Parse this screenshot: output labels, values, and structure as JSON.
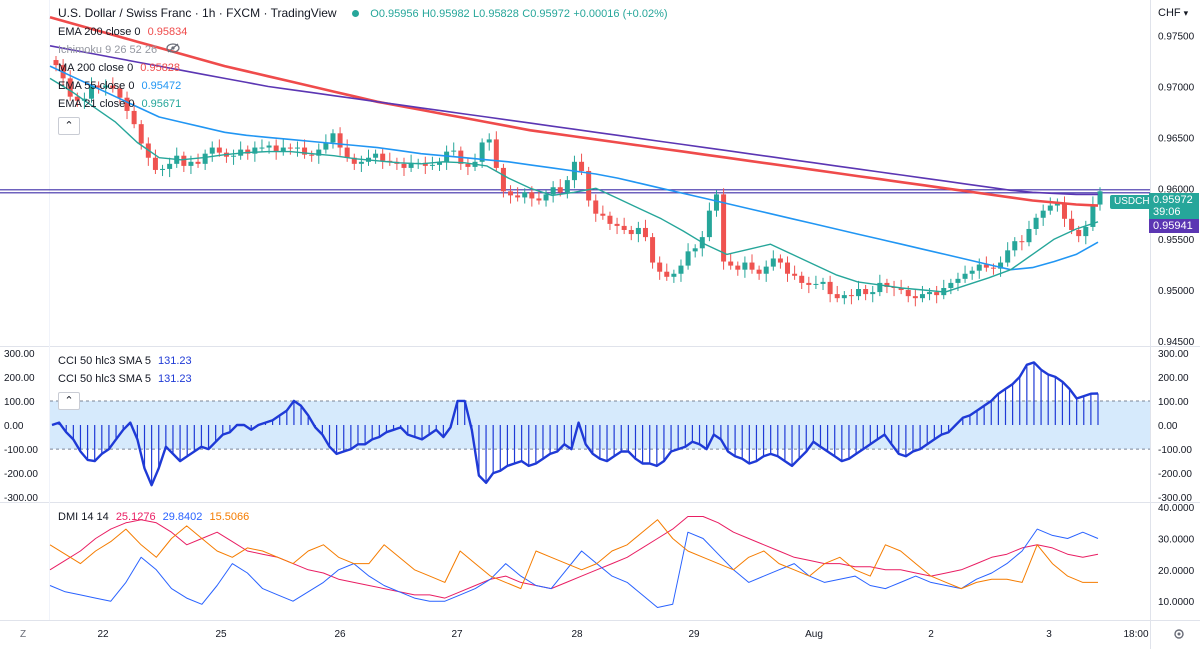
{
  "header": {
    "symbol": "U.S. Dollar / Swiss Franc",
    "interval": "1h",
    "broker": "FXCM",
    "platform": "TradingView",
    "ohlc": {
      "o": "O0.95956",
      "h": "H0.95982",
      "l": "L0.95828",
      "c": "C0.95972",
      "change": "+0.00016 (+0.02%)"
    }
  },
  "indicators": [
    {
      "label": "EMA 200 close 0",
      "value": "0.95834",
      "color": "#ef4b4b"
    },
    {
      "label": "Ichimoku 9 26 52 26",
      "value": "",
      "color": "#9598a1"
    },
    {
      "label": "MA 200 close 0",
      "value": "0.95828",
      "color": "#ef4b4b"
    },
    {
      "label": "EMA 55 close 0",
      "value": "0.95472",
      "color": "#2196f3"
    },
    {
      "label": "EMA 21 close 0",
      "value": "0.95671",
      "color": "#26a69a"
    }
  ],
  "price_axis": {
    "currency": "CHF",
    "ticks": [
      "0.97500",
      "0.97000",
      "0.96500",
      "0.96000",
      "0.95500",
      "0.95000",
      "0.94500"
    ],
    "last_label": "USDCHF",
    "last_price": "0.95972",
    "countdown": "39:06",
    "ma_label": "0.95941"
  },
  "cci": {
    "labels": [
      "CCI 50 hlc3 SMA 5",
      "CCI 50 hlc3 SMA 5"
    ],
    "value": "131.23",
    "ticks": [
      "300.00",
      "200.00",
      "100.00",
      "0.00",
      "-100.00",
      "-200.00",
      "-300.00"
    ]
  },
  "dmi": {
    "label": "DMI 14 14",
    "values": [
      {
        "value": "25.1276",
        "color": "#e91e63"
      },
      {
        "value": "29.8402",
        "color": "#2962ff"
      },
      {
        "value": "15.5066",
        "color": "#f57c00"
      }
    ],
    "ticks": [
      "40.0000",
      "30.0000",
      "20.0000",
      "10.0000"
    ]
  },
  "time_axis": {
    "labels": [
      "22",
      "25",
      "26",
      "27",
      "28",
      "29",
      "Aug",
      "2",
      "3",
      "18:00"
    ],
    "zoom_icon": "Z"
  },
  "colors": {
    "up": "#26a69a",
    "down": "#ef5350",
    "ema200": "#ef4b4b",
    "ma200": "#5b36b3",
    "ema55": "#2196f3",
    "ema21": "#26a69a",
    "cci": "#1f3ad6"
  },
  "chart_data": [
    {
      "type": "candlestick",
      "title": "U.S. Dollar / Swiss Franc · 1h · FXCM",
      "ylim": [
        0.9445,
        0.9785
      ],
      "x_labels": [
        "22",
        "25",
        "26",
        "27",
        "28",
        "29",
        "Aug",
        "2",
        "3",
        "18:00"
      ],
      "close": [
        0.9721,
        0.9708,
        0.969,
        0.9686,
        0.9688,
        0.9701,
        0.9699,
        0.9701,
        0.9698,
        0.9689,
        0.9676,
        0.9663,
        0.9644,
        0.963,
        0.9618,
        0.9619,
        0.9624,
        0.9632,
        0.9622,
        0.9626,
        0.9624,
        0.9634,
        0.964,
        0.9635,
        0.9631,
        0.9632,
        0.9638,
        0.9634,
        0.964,
        0.964,
        0.9642,
        0.9636,
        0.964,
        0.9639,
        0.964,
        0.9633,
        0.9632,
        0.9638,
        0.9645,
        0.9654,
        0.964,
        0.963,
        0.9624,
        0.9626,
        0.963,
        0.9634,
        0.9627,
        0.9626,
        0.9624,
        0.962,
        0.9625,
        0.9625,
        0.9622,
        0.9623,
        0.9626,
        0.9636,
        0.9637,
        0.9624,
        0.9621,
        0.9626,
        0.9645,
        0.9648,
        0.962,
        0.9597,
        0.9593,
        0.9591,
        0.9596,
        0.959,
        0.9588,
        0.9594,
        0.9601,
        0.9596,
        0.9608,
        0.9626,
        0.9617,
        0.9588,
        0.9575,
        0.9573,
        0.9565,
        0.9563,
        0.9559,
        0.9555,
        0.9561,
        0.9552,
        0.9527,
        0.9518,
        0.9513,
        0.9516,
        0.9524,
        0.9538,
        0.9541,
        0.9552,
        0.9578,
        0.9594,
        0.9528,
        0.9524,
        0.952,
        0.9527,
        0.952,
        0.9516,
        0.9523,
        0.9531,
        0.9527,
        0.9516,
        0.9514,
        0.9507,
        0.9505,
        0.9506,
        0.9508,
        0.9496,
        0.9492,
        0.9495,
        0.9494,
        0.9501,
        0.9496,
        0.9498,
        0.9507,
        0.9503,
        0.9502,
        0.95,
        0.9494,
        0.9492,
        0.9496,
        0.9498,
        0.9495,
        0.9502,
        0.9507,
        0.9511,
        0.9516,
        0.9519,
        0.9525,
        0.9522,
        0.9521,
        0.9527,
        0.9539,
        0.9548,
        0.9547,
        0.956,
        0.9571,
        0.9578,
        0.9583,
        0.9586,
        0.957,
        0.9559,
        0.9553,
        0.9562,
        0.9584,
        0.9597
      ],
      "series": [
        {
          "name": "EMA 200",
          "values": [
            0.9768,
            0.9762,
            0.9756,
            0.975,
            0.9744,
            0.9738,
            0.9732,
            0.9726,
            0.972,
            0.9715,
            0.971,
            0.9705,
            0.97,
            0.9695,
            0.969,
            0.9685,
            0.9681,
            0.9677,
            0.9673,
            0.9669,
            0.9665,
            0.9661,
            0.9657,
            0.9654,
            0.9651,
            0.9648,
            0.9645,
            0.9642,
            0.9639,
            0.9636,
            0.9633,
            0.963,
            0.9627,
            0.9624,
            0.9621,
            0.9618,
            0.9615,
            0.9612,
            0.9609,
            0.9606,
            0.9603,
            0.96,
            0.9597,
            0.9594,
            0.9591,
            0.9588,
            0.9586,
            0.9584,
            0.9583
          ]
        },
        {
          "name": "MA 200",
          "values": [
            0.974,
            0.9736,
            0.9732,
            0.9728,
            0.9724,
            0.972,
            0.9716,
            0.9712,
            0.9708,
            0.9704,
            0.97,
            0.9697,
            0.9694,
            0.9691,
            0.9688,
            0.9685,
            0.9682,
            0.9679,
            0.9676,
            0.9673,
            0.967,
            0.9667,
            0.9664,
            0.9661,
            0.9658,
            0.9655,
            0.9652,
            0.9649,
            0.9646,
            0.9643,
            0.964,
            0.9637,
            0.9634,
            0.9631,
            0.9628,
            0.9625,
            0.9622,
            0.9619,
            0.9616,
            0.9613,
            0.961,
            0.9607,
            0.9604,
            0.9601,
            0.9598,
            0.9596,
            0.9595,
            0.9594,
            0.9594
          ]
        },
        {
          "name": "EMA 55",
          "values": [
            0.972,
            0.971,
            0.97,
            0.969,
            0.968,
            0.967,
            0.9665,
            0.966,
            0.9655,
            0.9652,
            0.965,
            0.9648,
            0.9646,
            0.9644,
            0.9642,
            0.964,
            0.9637,
            0.9634,
            0.9632,
            0.963,
            0.9628,
            0.9626,
            0.9623,
            0.962,
            0.9617,
            0.9614,
            0.961,
            0.9605,
            0.96,
            0.9595,
            0.959,
            0.9585,
            0.958,
            0.9575,
            0.957,
            0.9565,
            0.956,
            0.9555,
            0.955,
            0.9545,
            0.954,
            0.9535,
            0.953,
            0.9525,
            0.952,
            0.9522,
            0.9528,
            0.9535,
            0.9547
          ]
        },
        {
          "name": "EMA 21",
          "values": [
            0.9708,
            0.9695,
            0.968,
            0.9665,
            0.9645,
            0.963,
            0.9628,
            0.963,
            0.9633,
            0.9635,
            0.9636,
            0.9636,
            0.9634,
            0.9632,
            0.9629,
            0.9627,
            0.9625,
            0.9624,
            0.9626,
            0.9625,
            0.9622,
            0.961,
            0.96,
            0.9593,
            0.9596,
            0.96,
            0.959,
            0.958,
            0.957,
            0.9558,
            0.9545,
            0.9535,
            0.954,
            0.9545,
            0.9535,
            0.9525,
            0.9515,
            0.9508,
            0.9505,
            0.9502,
            0.95,
            0.9498,
            0.9505,
            0.9512,
            0.952,
            0.9535,
            0.955,
            0.956,
            0.9567
          ]
        }
      ]
    },
    {
      "type": "area",
      "title": "CCI 50 hlc3 SMA 5",
      "ylim": [
        -320,
        320
      ],
      "bands": [
        100,
        -100
      ],
      "values": [
        0,
        10,
        -30,
        -60,
        -110,
        -145,
        -150,
        -120,
        -100,
        -60,
        -20,
        10,
        -60,
        -180,
        -250,
        -180,
        -90,
        -120,
        -150,
        -130,
        -110,
        -90,
        -100,
        -70,
        -40,
        -30,
        0,
        0,
        -20,
        0,
        10,
        20,
        40,
        60,
        100,
        80,
        40,
        -10,
        -40,
        -90,
        -120,
        -110,
        -100,
        -80,
        -80,
        -60,
        -50,
        -30,
        -20,
        -10,
        -40,
        -50,
        -60,
        -40,
        -20,
        -50,
        -10,
        100,
        100,
        -20,
        -210,
        -240,
        -200,
        -190,
        -170,
        -160,
        -150,
        -170,
        -160,
        -140,
        -120,
        -110,
        -80,
        -100,
        10,
        -80,
        -120,
        -140,
        -150,
        -130,
        -110,
        -110,
        -140,
        -160,
        -160,
        -170,
        -150,
        -110,
        -100,
        -90,
        -70,
        -80,
        -100,
        -40,
        -60,
        -110,
        -130,
        -140,
        -160,
        -150,
        -130,
        -120,
        -130,
        -150,
        -170,
        -140,
        -110,
        -70,
        -90,
        -110,
        -130,
        -150,
        -140,
        -120,
        -100,
        -80,
        -60,
        -40,
        -80,
        -120,
        -130,
        -110,
        -100,
        -80,
        -60,
        -40,
        -30,
        0,
        30,
        40,
        60,
        80,
        100,
        130,
        150,
        170,
        200,
        250,
        260,
        230,
        210,
        200,
        180,
        150,
        110,
        120,
        130,
        131
      ]
    },
    {
      "type": "line",
      "title": "DMI 14 14",
      "ylim": [
        4,
        41
      ],
      "series": [
        {
          "name": "ADX",
          "values": [
            20,
            23,
            26,
            30,
            33,
            35,
            36,
            35,
            32,
            28,
            30,
            32,
            29,
            26,
            25,
            24,
            22,
            20,
            19,
            17,
            16,
            15,
            14,
            13,
            12,
            12,
            11,
            13,
            15,
            17,
            18,
            16,
            15,
            14,
            16,
            18,
            20,
            22,
            24,
            27,
            30,
            33,
            37,
            37,
            35,
            32,
            30,
            28,
            26,
            24,
            23,
            22,
            22,
            21,
            21,
            20,
            20,
            19,
            18,
            19,
            20,
            22,
            24,
            25,
            27,
            28,
            27,
            25,
            24,
            25
          ]
        },
        {
          "name": "+DI",
          "values": [
            15,
            13,
            12,
            11,
            10,
            16,
            24,
            20,
            14,
            11,
            9,
            15,
            22,
            19,
            14,
            12,
            10,
            13,
            16,
            20,
            22,
            18,
            15,
            13,
            11,
            10,
            10,
            12,
            14,
            17,
            22,
            18,
            15,
            14,
            20,
            26,
            22,
            18,
            16,
            12,
            8,
            9,
            32,
            30,
            25,
            20,
            16,
            18,
            20,
            22,
            18,
            16,
            17,
            18,
            15,
            14,
            16,
            18,
            16,
            15,
            14,
            17,
            19,
            22,
            26,
            33,
            31,
            30,
            32,
            30
          ]
        },
        {
          "name": "-DI",
          "values": [
            28,
            25,
            22,
            26,
            29,
            33,
            28,
            24,
            30,
            34,
            30,
            26,
            24,
            27,
            26,
            24,
            22,
            26,
            28,
            24,
            22,
            22,
            28,
            24,
            20,
            18,
            16,
            26,
            22,
            18,
            16,
            14,
            26,
            24,
            22,
            20,
            22,
            26,
            28,
            32,
            36,
            30,
            26,
            24,
            22,
            20,
            24,
            26,
            22,
            20,
            18,
            22,
            24,
            20,
            18,
            28,
            26,
            22,
            18,
            16,
            14,
            16,
            17,
            17,
            16,
            28,
            22,
            18,
            16,
            16
          ]
        }
      ]
    }
  ]
}
